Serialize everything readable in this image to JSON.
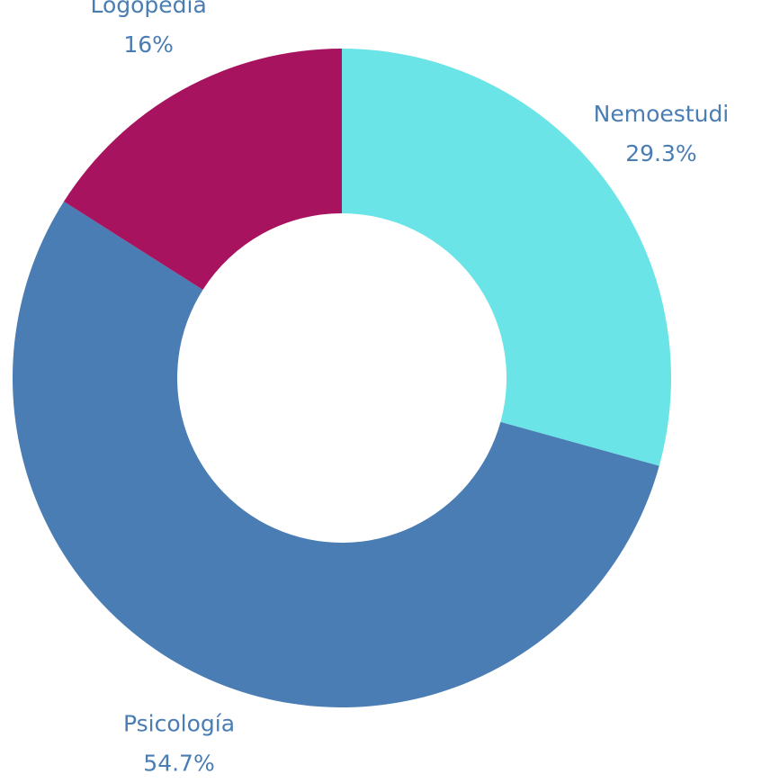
{
  "chart_data": {
    "type": "donut",
    "categories": [
      "Nemoestudi",
      "Psicología",
      "Logopedia"
    ],
    "values": [
      29.3,
      54.7,
      16
    ],
    "value_labels": [
      "29.3%",
      "54.7%",
      "16%"
    ],
    "colors": [
      "#6ae4e6",
      "#4a7db3",
      "#a8135f"
    ]
  }
}
